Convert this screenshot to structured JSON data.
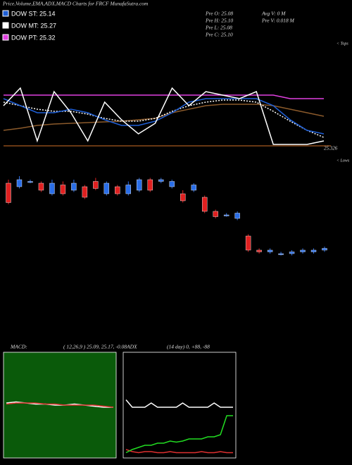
{
  "header": {
    "title": "Price,Volume,EMA,ADX,MACD Charts for FRCF MunafaSutra.com",
    "legend": [
      {
        "label": "DOW ST: 25.14",
        "color": "#1f5fd6"
      },
      {
        "label": "DOW MT: 25.27",
        "color": "#ffffff"
      },
      {
        "label": "DOW PT: 25.32",
        "color": "#e040e0"
      }
    ],
    "info": [
      "Pre  O: 25.08",
      "Pre  H: 25.10",
      "Pre  L: 25.08",
      "Pre  C: 25.10"
    ],
    "info2": [
      "Avg V: 0  M",
      "Pre  V: 0.018 M"
    ],
    "tops": "< Tops",
    "lows": "< Lows",
    "macd_label": "MACD:",
    "macd_params": "( 12,26,9 ) 25.09,  25.17,  -0.08",
    "adx_label": "ADX",
    "adx_params": "(14  day) 0,  +88,  -88"
  },
  "chart_data": [
    {
      "type": "line",
      "ylim": [
        25.3,
        25.6
      ],
      "level": 25.326,
      "level_label": "25.326",
      "level_color": "#8b4a1a",
      "series": [
        {
          "color": "#8b5a2b",
          "values": [
            25.37,
            25.376,
            25.384,
            25.388,
            25.39,
            25.392,
            25.394,
            25.396,
            25.4,
            25.404,
            25.42,
            25.43,
            25.44,
            25.444,
            25.444,
            25.444,
            25.44,
            25.43,
            25.42,
            25.41
          ]
        },
        {
          "color": "#e040e0",
          "values": [
            25.47,
            25.47,
            25.47,
            25.47,
            25.47,
            25.47,
            25.47,
            25.47,
            25.47,
            25.47,
            25.47,
            25.47,
            25.47,
            25.47,
            25.47,
            25.47,
            25.47,
            25.46,
            25.46,
            25.46
          ]
        },
        {
          "color": "#ffffff",
          "dash": true,
          "values": [
            25.45,
            25.44,
            25.43,
            25.424,
            25.424,
            25.416,
            25.404,
            25.396,
            25.396,
            25.404,
            25.424,
            25.44,
            25.45,
            25.456,
            25.456,
            25.45,
            25.424,
            25.396,
            25.37,
            25.35
          ]
        },
        {
          "color": "#1f5fd6",
          "values": [
            25.46,
            25.44,
            25.42,
            25.42,
            25.43,
            25.42,
            25.4,
            25.384,
            25.384,
            25.396,
            25.42,
            25.45,
            25.46,
            25.46,
            25.46,
            25.46,
            25.44,
            25.4,
            25.37,
            25.36
          ]
        },
        {
          "color": "#ffffff",
          "values": [
            25.44,
            25.49,
            25.34,
            25.48,
            25.42,
            25.34,
            25.45,
            25.4,
            25.36,
            25.39,
            25.49,
            25.44,
            25.48,
            25.47,
            25.46,
            25.48,
            25.33,
            25.33,
            25.33,
            25.34
          ]
        }
      ]
    },
    {
      "type": "candlestick",
      "ylim": [
        25.0,
        25.56
      ],
      "up_color": "#2a6ee8",
      "down_color": "#e02020",
      "open": [
        25.44,
        25.42,
        25.45,
        25.44,
        25.38,
        25.43,
        25.4,
        25.42,
        25.45,
        25.38,
        25.42,
        25.38,
        25.4,
        25.46,
        25.45,
        25.42,
        25.38,
        25.4,
        25.36,
        25.28,
        25.26,
        25.24,
        25.14,
        25.06,
        25.05,
        25.04,
        25.04,
        25.05,
        25.05,
        25.06
      ],
      "close": [
        25.33,
        25.46,
        25.45,
        25.4,
        25.44,
        25.38,
        25.44,
        25.36,
        25.41,
        25.44,
        25.38,
        25.43,
        25.46,
        25.4,
        25.46,
        25.45,
        25.34,
        25.43,
        25.28,
        25.25,
        25.26,
        25.27,
        25.06,
        25.05,
        25.06,
        25.04,
        25.05,
        25.06,
        25.06,
        25.07
      ],
      "high": [
        25.46,
        25.48,
        25.46,
        25.45,
        25.46,
        25.45,
        25.46,
        25.43,
        25.47,
        25.45,
        25.43,
        25.45,
        25.47,
        25.47,
        25.47,
        25.46,
        25.4,
        25.44,
        25.37,
        25.29,
        25.27,
        25.28,
        25.15,
        25.07,
        25.07,
        25.05,
        25.06,
        25.07,
        25.07,
        25.08
      ],
      "low": [
        25.32,
        25.41,
        25.44,
        25.39,
        25.37,
        25.37,
        25.39,
        25.35,
        25.4,
        25.37,
        25.37,
        25.37,
        25.39,
        25.39,
        25.44,
        25.41,
        25.33,
        25.39,
        25.27,
        25.24,
        25.25,
        25.23,
        25.05,
        25.04,
        25.04,
        25.03,
        25.03,
        25.04,
        25.04,
        25.05
      ]
    },
    {
      "type": "line",
      "ylim": [
        -0.5,
        0.5
      ],
      "background": "#0a5a0a",
      "series": [
        {
          "color": "#ffffff",
          "values": [
            0.02,
            0.03,
            0.02,
            0.01,
            0.01,
            0.0,
            0.0,
            0.01,
            0.0,
            -0.01,
            -0.02,
            -0.02
          ]
        },
        {
          "color": "#e03030",
          "values": [
            0.01,
            0.02,
            0.02,
            0.02,
            0.01,
            0.01,
            0.0,
            0.0,
            0.0,
            0.0,
            -0.01,
            -0.02
          ]
        }
      ]
    },
    {
      "type": "line",
      "ylim": [
        0,
        100
      ],
      "background": "#000000",
      "series": [
        {
          "color": "#e03030",
          "values": [
            8,
            6,
            5,
            6,
            6,
            5,
            5,
            6,
            5,
            5,
            5,
            5,
            6,
            5,
            5,
            6,
            5,
            5
          ]
        },
        {
          "color": "#ffffff",
          "values": [
            55,
            48,
            48,
            48,
            52,
            48,
            48,
            48,
            48,
            52,
            48,
            48,
            48,
            48,
            52,
            48,
            48,
            48
          ]
        },
        {
          "color": "#22dd22",
          "values": [
            5,
            8,
            10,
            12,
            12,
            14,
            14,
            16,
            15,
            16,
            18,
            18,
            18,
            20,
            20,
            22,
            40,
            40
          ]
        }
      ]
    }
  ]
}
